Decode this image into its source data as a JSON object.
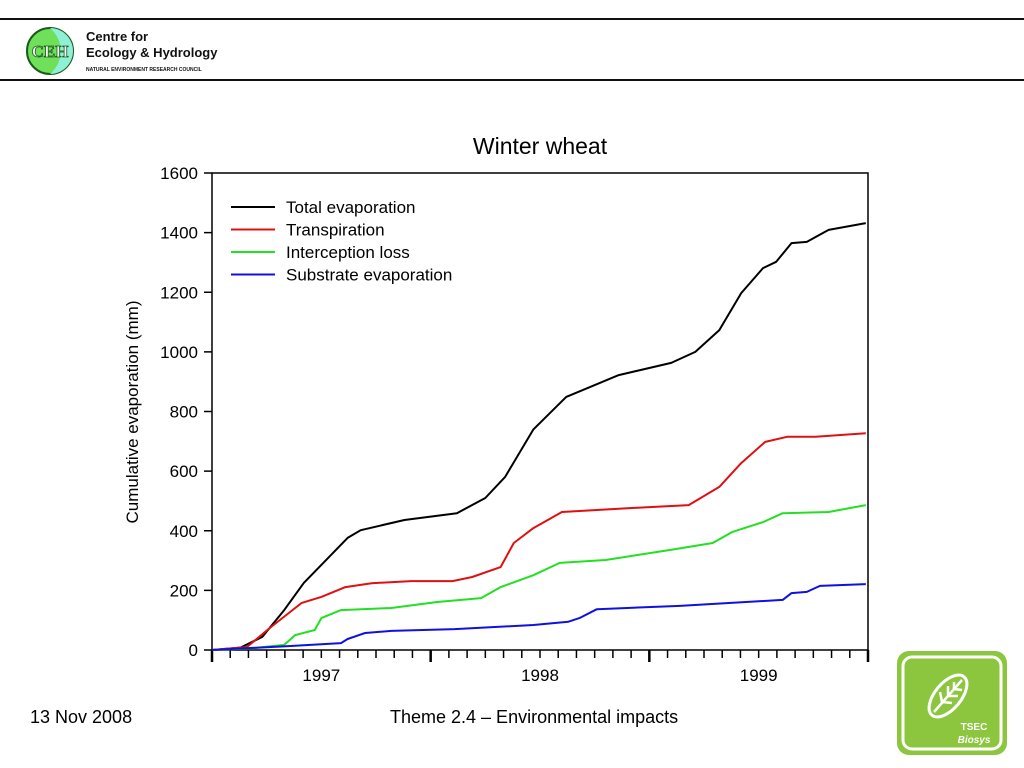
{
  "header": {
    "logo_text": "CEH",
    "org_name_line1": "Centre for",
    "org_name_line2": "Ecology & Hydrology",
    "org_subtitle": "NATURAL ENVIRONMENT RESEARCH COUNCIL"
  },
  "footer": {
    "date": "13 Nov 2008",
    "theme": "Theme 2.4 – Environmental impacts",
    "logo_text_line1": "TSEC",
    "logo_text_line2": "Biosys"
  },
  "chart_data": {
    "type": "line",
    "title": "Winter wheat",
    "xlabel": "",
    "ylabel": "Cumulative evaporation (mm)",
    "xlim": [
      1997.0,
      2000.0
    ],
    "ylim": [
      0,
      1600
    ],
    "yticks": [
      0,
      200,
      400,
      600,
      800,
      1000,
      1200,
      1400,
      1600
    ],
    "xtick_labels": [
      "1997",
      "1998",
      "1999"
    ],
    "grid": false,
    "legend_position": "top-left",
    "series": [
      {
        "name": "Total evaporation",
        "color": "#000000",
        "x": [
          1997.0,
          1997.13,
          1997.23,
          1997.33,
          1997.42,
          1997.62,
          1997.68,
          1997.88,
          1998.12,
          1998.25,
          1998.34,
          1998.47,
          1998.62,
          1998.86,
          1999.1,
          1999.21,
          1999.32,
          1999.42,
          1999.52,
          1999.58,
          1999.65,
          1999.72,
          1999.82,
          1999.99
        ],
        "y": [
          0,
          8,
          44,
          134,
          225,
          376,
          402,
          436,
          459,
          510,
          580,
          740,
          849,
          922,
          963,
          1000,
          1073,
          1197,
          1281,
          1302,
          1365,
          1369,
          1409,
          1432
        ]
      },
      {
        "name": "Transpiration",
        "color": "#e01010",
        "x": [
          1997.0,
          1997.16,
          1997.27,
          1997.41,
          1997.5,
          1997.61,
          1997.73,
          1997.91,
          1998.1,
          1998.19,
          1998.32,
          1998.38,
          1998.47,
          1998.6,
          1998.91,
          1999.18,
          1999.32,
          1999.42,
          1999.53,
          1999.63,
          1999.76,
          1999.99
        ],
        "y": [
          0,
          10,
          77,
          158,
          178,
          211,
          224,
          231,
          231,
          245,
          278,
          359,
          409,
          463,
          476,
          486,
          547,
          627,
          698,
          715,
          715,
          727
        ]
      },
      {
        "name": "Interception loss",
        "color": "#22e022",
        "x": [
          1997.0,
          1997.17,
          1997.33,
          1997.38,
          1997.47,
          1997.5,
          1997.59,
          1997.82,
          1998.03,
          1998.23,
          1998.32,
          1998.47,
          1998.59,
          1998.8,
          1999.09,
          1999.29,
          1999.38,
          1999.52,
          1999.61,
          1999.82,
          1999.99
        ],
        "y": [
          0,
          5,
          17,
          50,
          67,
          107,
          134,
          141,
          161,
          174,
          211,
          251,
          292,
          302,
          335,
          359,
          396,
          429,
          459,
          463,
          486
        ]
      },
      {
        "name": "Substrate evaporation",
        "color": "#1010e0",
        "x": [
          1997.0,
          1997.35,
          1997.59,
          1997.62,
          1997.7,
          1997.82,
          1998.11,
          1998.47,
          1998.63,
          1998.68,
          1998.76,
          1999.14,
          1999.61,
          1999.65,
          1999.72,
          1999.78,
          1999.99
        ],
        "y": [
          0,
          13,
          23,
          37,
          57,
          64,
          70,
          84,
          95,
          107,
          137,
          148,
          168,
          191,
          195,
          215,
          221
        ]
      }
    ]
  }
}
